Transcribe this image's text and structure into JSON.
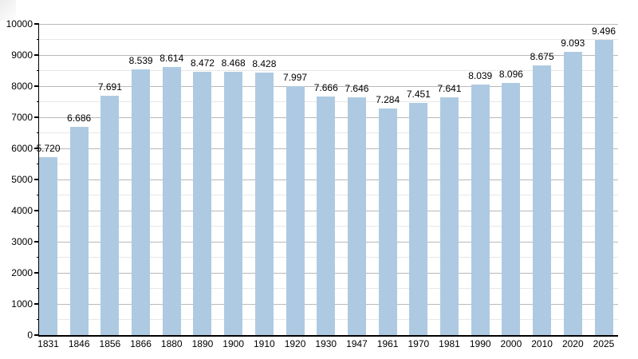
{
  "chart_data": {
    "type": "bar",
    "title": "",
    "xlabel": "",
    "ylabel": "",
    "categories": [
      "1831",
      "1846",
      "1856",
      "1866",
      "1880",
      "1890",
      "1900",
      "1910",
      "1920",
      "1930",
      "1947",
      "1961",
      "1970",
      "1981",
      "1990",
      "2000",
      "2010",
      "2020",
      "2025"
    ],
    "values": [
      5720,
      6686,
      7691,
      8539,
      8614,
      8472,
      8468,
      8428,
      7997,
      7666,
      7646,
      7284,
      7451,
      7641,
      8039,
      8096,
      8675,
      9093,
      9496
    ],
    "value_labels": [
      "5.720",
      "6.686",
      "7.691",
      "8.539",
      "8.614",
      "8.472",
      "8.468",
      "8.428",
      "7.997",
      "7.666",
      "7.646",
      "7.284",
      "7.451",
      "7.641",
      "8.039",
      "8.096",
      "8.675",
      "9.093",
      "9.496"
    ],
    "ylim": [
      0,
      10000
    ],
    "y_major_step": 1000,
    "y_minor_step": 500,
    "y_tick_labels": [
      "0",
      "1000",
      "2000",
      "3000",
      "4000",
      "5000",
      "6000",
      "7000",
      "8000",
      "9000",
      "10000"
    ],
    "grid": true,
    "legend": "none",
    "colors": {
      "bar": "#aecae2",
      "grid_major": "#b9b9b9",
      "grid_minor": "#e7e7e7",
      "axis": "#000000",
      "text": "#000000"
    }
  }
}
